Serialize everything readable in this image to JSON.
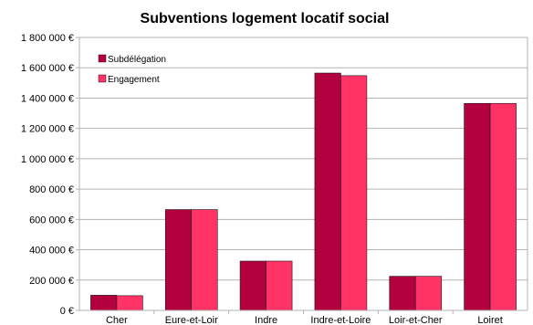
{
  "chart_data": {
    "type": "bar",
    "title": "Subventions logement locatif social",
    "categories": [
      "Cher",
      "Eure-et-Loir",
      "Indre",
      "Indre-et-Loire",
      "Loir-et-Cher",
      "Loiret"
    ],
    "series": [
      {
        "name": "Subdélégation",
        "color": "#b3003f",
        "values": [
          100000,
          665000,
          325000,
          1565000,
          225000,
          1365000
        ]
      },
      {
        "name": "Engagement",
        "color": "#ff3366",
        "values": [
          97000,
          665000,
          325000,
          1548000,
          225000,
          1365000
        ]
      }
    ],
    "ylim": [
      0,
      1800000
    ],
    "ytick_step": 200000,
    "ytick_labels": [
      "0 €",
      "200 000 €",
      "400 000 €",
      "600 000 €",
      "800 000 €",
      "1 000 000 €",
      "1 200 000 €",
      "1 400 000 €",
      "1 600 000 €",
      "1 800 000 €"
    ],
    "xlabel": "",
    "ylabel": "",
    "grid": true,
    "legend_position": "top-left"
  }
}
